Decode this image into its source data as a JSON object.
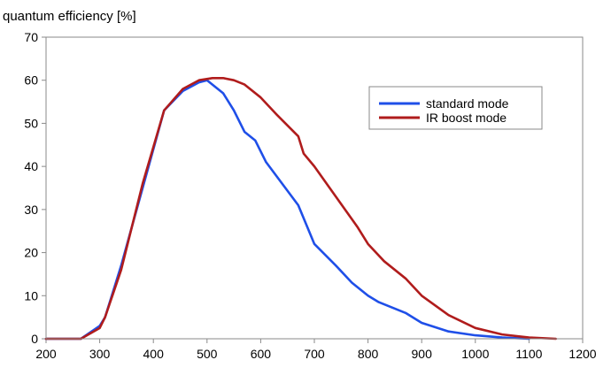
{
  "chart_data": {
    "type": "line",
    "title": "",
    "xlabel": "",
    "ylabel": "quantum efficiency [%]",
    "xlim": [
      200,
      1200
    ],
    "ylim": [
      0,
      70
    ],
    "xticks": [
      200,
      300,
      400,
      500,
      600,
      700,
      800,
      900,
      1000,
      1100,
      1200
    ],
    "yticks": [
      0,
      10,
      20,
      30,
      40,
      50,
      60,
      70
    ],
    "grid": false,
    "legend_position": "top-right",
    "series": [
      {
        "name": "standard mode",
        "color": "#1f4fe8",
        "x": [
          200,
          265,
          300,
          310,
          340,
          380,
          420,
          455,
          485,
          500,
          530,
          550,
          570,
          590,
          610,
          640,
          670,
          700,
          740,
          770,
          800,
          820,
          870,
          900,
          950,
          1000,
          1050,
          1100
        ],
        "y": [
          0,
          0,
          3,
          5,
          17,
          35,
          53,
          57.5,
          59.5,
          60,
          57,
          53,
          48,
          46,
          41,
          36,
          31,
          22,
          17,
          13,
          10,
          8.5,
          6,
          3.7,
          1.7,
          0.8,
          0.3,
          0
        ]
      },
      {
        "name": "IR boost mode",
        "color": "#b01c1c",
        "x": [
          200,
          265,
          300,
          310,
          340,
          380,
          420,
          455,
          485,
          510,
          530,
          550,
          570,
          600,
          630,
          670,
          680,
          700,
          740,
          780,
          800,
          830,
          870,
          900,
          950,
          1000,
          1050,
          1100,
          1150
        ],
        "y": [
          0,
          0,
          2.5,
          5,
          16,
          36,
          53,
          58,
          60,
          60.5,
          60.5,
          60,
          59,
          56,
          52,
          47,
          43,
          40,
          33,
          26,
          22,
          18,
          14,
          10,
          5.5,
          2.5,
          1,
          0.3,
          0
        ]
      }
    ]
  }
}
